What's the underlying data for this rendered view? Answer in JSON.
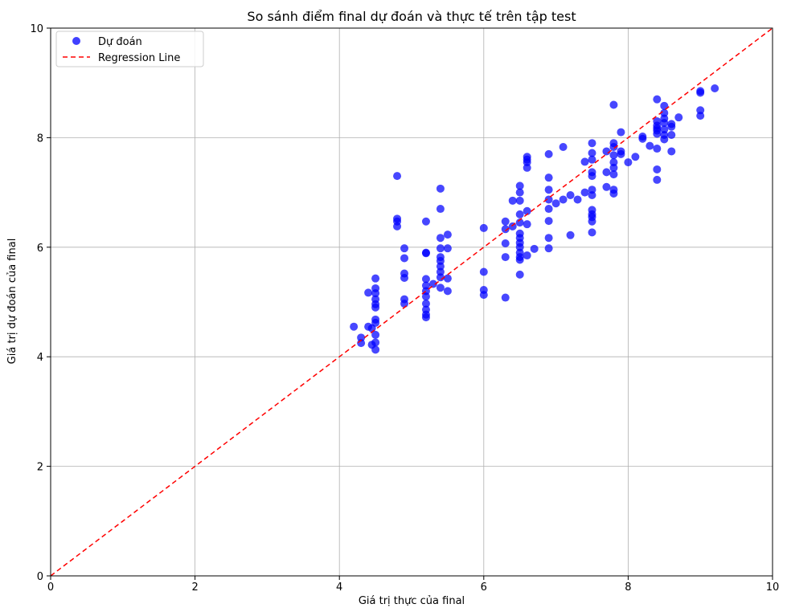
{
  "chart_data": {
    "type": "scatter",
    "title": "So sánh điểm final dự đoán và thực tế trên tập test",
    "xlabel": "Giá trị thực của final",
    "ylabel": "Giá trị dự đoán của final",
    "xlim": [
      0,
      10
    ],
    "ylim": [
      0,
      10
    ],
    "xticks": [
      "0",
      "2",
      "4",
      "6",
      "8",
      "10"
    ],
    "yticks": [
      "0",
      "2",
      "4",
      "6",
      "8",
      "10"
    ],
    "grid": true,
    "legend_position": "top-left",
    "series": [
      {
        "name": "Dự đoán",
        "kind": "points",
        "color": "#0000ff",
        "points": [
          [
            4.2,
            4.55
          ],
          [
            4.3,
            4.35
          ],
          [
            4.3,
            4.25
          ],
          [
            4.4,
            4.55
          ],
          [
            4.4,
            5.17
          ],
          [
            4.45,
            4.22
          ],
          [
            4.45,
            4.52
          ],
          [
            4.5,
            4.13
          ],
          [
            4.5,
            4.26
          ],
          [
            4.5,
            4.4
          ],
          [
            4.5,
            4.62
          ],
          [
            4.5,
            4.68
          ],
          [
            4.5,
            4.9
          ],
          [
            4.5,
            4.96
          ],
          [
            4.5,
            5.05
          ],
          [
            4.5,
            5.16
          ],
          [
            4.5,
            5.25
          ],
          [
            4.5,
            5.43
          ],
          [
            4.8,
            6.38
          ],
          [
            4.8,
            6.47
          ],
          [
            4.8,
            6.52
          ],
          [
            4.8,
            7.3
          ],
          [
            4.9,
            4.97
          ],
          [
            4.9,
            5.05
          ],
          [
            4.9,
            5.44
          ],
          [
            4.9,
            5.52
          ],
          [
            4.9,
            5.8
          ],
          [
            4.9,
            5.98
          ],
          [
            5.2,
            4.72
          ],
          [
            5.2,
            4.77
          ],
          [
            5.2,
            4.86
          ],
          [
            5.2,
            4.97
          ],
          [
            5.2,
            5.1
          ],
          [
            5.2,
            5.2
          ],
          [
            5.2,
            5.3
          ],
          [
            5.2,
            5.42
          ],
          [
            5.2,
            5.89
          ],
          [
            5.2,
            5.9
          ],
          [
            5.2,
            6.47
          ],
          [
            5.3,
            5.33
          ],
          [
            5.4,
            5.26
          ],
          [
            5.4,
            5.45
          ],
          [
            5.4,
            5.55
          ],
          [
            5.4,
            5.65
          ],
          [
            5.4,
            5.75
          ],
          [
            5.4,
            5.82
          ],
          [
            5.4,
            5.98
          ],
          [
            5.4,
            6.17
          ],
          [
            5.4,
            6.7
          ],
          [
            5.4,
            7.07
          ],
          [
            5.5,
            5.2
          ],
          [
            5.5,
            5.43
          ],
          [
            5.5,
            5.98
          ],
          [
            5.5,
            6.23
          ],
          [
            6.0,
            5.13
          ],
          [
            6.0,
            5.22
          ],
          [
            6.0,
            5.55
          ],
          [
            6.0,
            6.35
          ],
          [
            6.3,
            5.08
          ],
          [
            6.3,
            5.82
          ],
          [
            6.3,
            6.07
          ],
          [
            6.3,
            6.33
          ],
          [
            6.3,
            6.47
          ],
          [
            6.4,
            6.38
          ],
          [
            6.4,
            6.85
          ],
          [
            6.5,
            5.5
          ],
          [
            6.5,
            5.77
          ],
          [
            6.5,
            5.82
          ],
          [
            6.5,
            5.9
          ],
          [
            6.5,
            6.0
          ],
          [
            6.5,
            6.08
          ],
          [
            6.5,
            6.17
          ],
          [
            6.5,
            6.25
          ],
          [
            6.5,
            6.45
          ],
          [
            6.5,
            6.6
          ],
          [
            6.5,
            6.85
          ],
          [
            6.5,
            7.0
          ],
          [
            6.5,
            7.12
          ],
          [
            6.6,
            5.85
          ],
          [
            6.6,
            6.42
          ],
          [
            6.6,
            6.66
          ],
          [
            6.6,
            7.45
          ],
          [
            6.6,
            7.55
          ],
          [
            6.6,
            7.6
          ],
          [
            6.6,
            7.65
          ],
          [
            6.7,
            5.97
          ],
          [
            6.9,
            5.98
          ],
          [
            6.9,
            6.17
          ],
          [
            6.9,
            6.48
          ],
          [
            6.9,
            6.7
          ],
          [
            6.9,
            6.87
          ],
          [
            6.9,
            7.05
          ],
          [
            6.9,
            7.27
          ],
          [
            6.9,
            7.7
          ],
          [
            7.0,
            6.8
          ],
          [
            7.1,
            6.87
          ],
          [
            7.1,
            7.83
          ],
          [
            7.2,
            6.22
          ],
          [
            7.2,
            6.95
          ],
          [
            7.3,
            6.87
          ],
          [
            7.4,
            7.0
          ],
          [
            7.4,
            7.56
          ],
          [
            7.5,
            6.27
          ],
          [
            7.5,
            6.47
          ],
          [
            7.5,
            6.55
          ],
          [
            7.5,
            6.6
          ],
          [
            7.5,
            6.68
          ],
          [
            7.5,
            6.95
          ],
          [
            7.5,
            7.05
          ],
          [
            7.5,
            7.3
          ],
          [
            7.5,
            7.37
          ],
          [
            7.5,
            7.6
          ],
          [
            7.5,
            7.72
          ],
          [
            7.5,
            7.9
          ],
          [
            7.7,
            7.1
          ],
          [
            7.7,
            7.37
          ],
          [
            7.7,
            7.75
          ],
          [
            7.8,
            6.98
          ],
          [
            7.8,
            7.05
          ],
          [
            7.8,
            7.33
          ],
          [
            7.8,
            7.45
          ],
          [
            7.8,
            7.55
          ],
          [
            7.8,
            7.68
          ],
          [
            7.8,
            7.83
          ],
          [
            7.8,
            7.9
          ],
          [
            7.8,
            8.6
          ],
          [
            7.9,
            7.7
          ],
          [
            7.9,
            7.75
          ],
          [
            7.9,
            8.1
          ],
          [
            8.0,
            7.55
          ],
          [
            8.1,
            7.65
          ],
          [
            8.2,
            7.98
          ],
          [
            8.2,
            8.02
          ],
          [
            8.3,
            7.85
          ],
          [
            8.4,
            7.23
          ],
          [
            8.4,
            7.42
          ],
          [
            8.4,
            7.8
          ],
          [
            8.4,
            8.07
          ],
          [
            8.4,
            8.13
          ],
          [
            8.4,
            8.17
          ],
          [
            8.4,
            8.22
          ],
          [
            8.4,
            8.3
          ],
          [
            8.4,
            8.7
          ],
          [
            8.5,
            7.97
          ],
          [
            8.5,
            8.05
          ],
          [
            8.5,
            8.15
          ],
          [
            8.5,
            8.27
          ],
          [
            8.5,
            8.35
          ],
          [
            8.5,
            8.45
          ],
          [
            8.5,
            8.58
          ],
          [
            8.6,
            7.75
          ],
          [
            8.6,
            8.05
          ],
          [
            8.6,
            8.2
          ],
          [
            8.6,
            8.25
          ],
          [
            8.7,
            8.37
          ],
          [
            9.0,
            8.4
          ],
          [
            9.0,
            8.5
          ],
          [
            9.0,
            8.82
          ],
          [
            9.0,
            8.85
          ],
          [
            9.2,
            8.9
          ]
        ]
      },
      {
        "name": "Regression Line",
        "kind": "line",
        "style": "dashed",
        "color": "#ff0000",
        "points": [
          [
            0,
            0
          ],
          [
            10,
            10
          ]
        ]
      }
    ]
  }
}
